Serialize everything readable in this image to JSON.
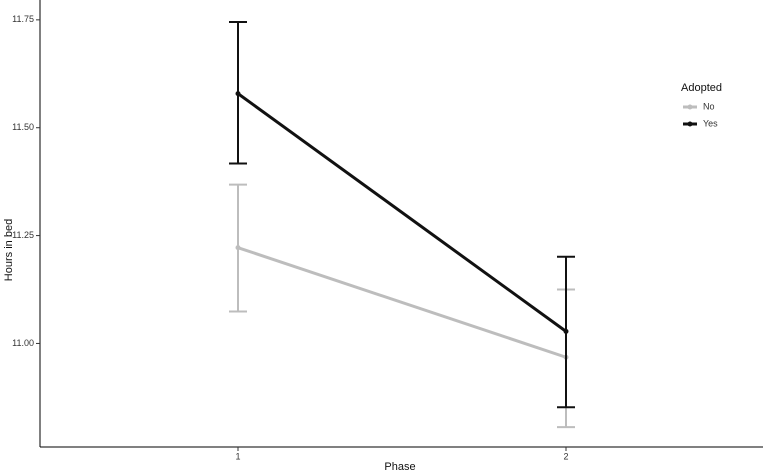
{
  "chart_data": {
    "type": "line",
    "x_label": "Phase",
    "y_label": "Hours in bed",
    "legend_title": "Adopted",
    "categories": [
      "1",
      "2"
    ],
    "series": [
      {
        "name": "No",
        "color": "#bdbdbd",
        "values": [
          11.222,
          10.968
        ],
        "lower": [
          11.074,
          10.806
        ],
        "upper": [
          11.368,
          11.125
        ]
      },
      {
        "name": "Yes",
        "color": "#111111",
        "values": [
          11.579,
          11.028
        ],
        "lower": [
          11.417,
          10.852
        ],
        "upper": [
          11.745,
          11.201
        ]
      }
    ],
    "ylim": [
      10.76,
      11.796
    ],
    "yticks": [
      {
        "value": 11,
        "label": "11.00"
      },
      11.25,
      {
        "value": 11.5,
        "label": "11.50"
      },
      11.75
    ]
  }
}
